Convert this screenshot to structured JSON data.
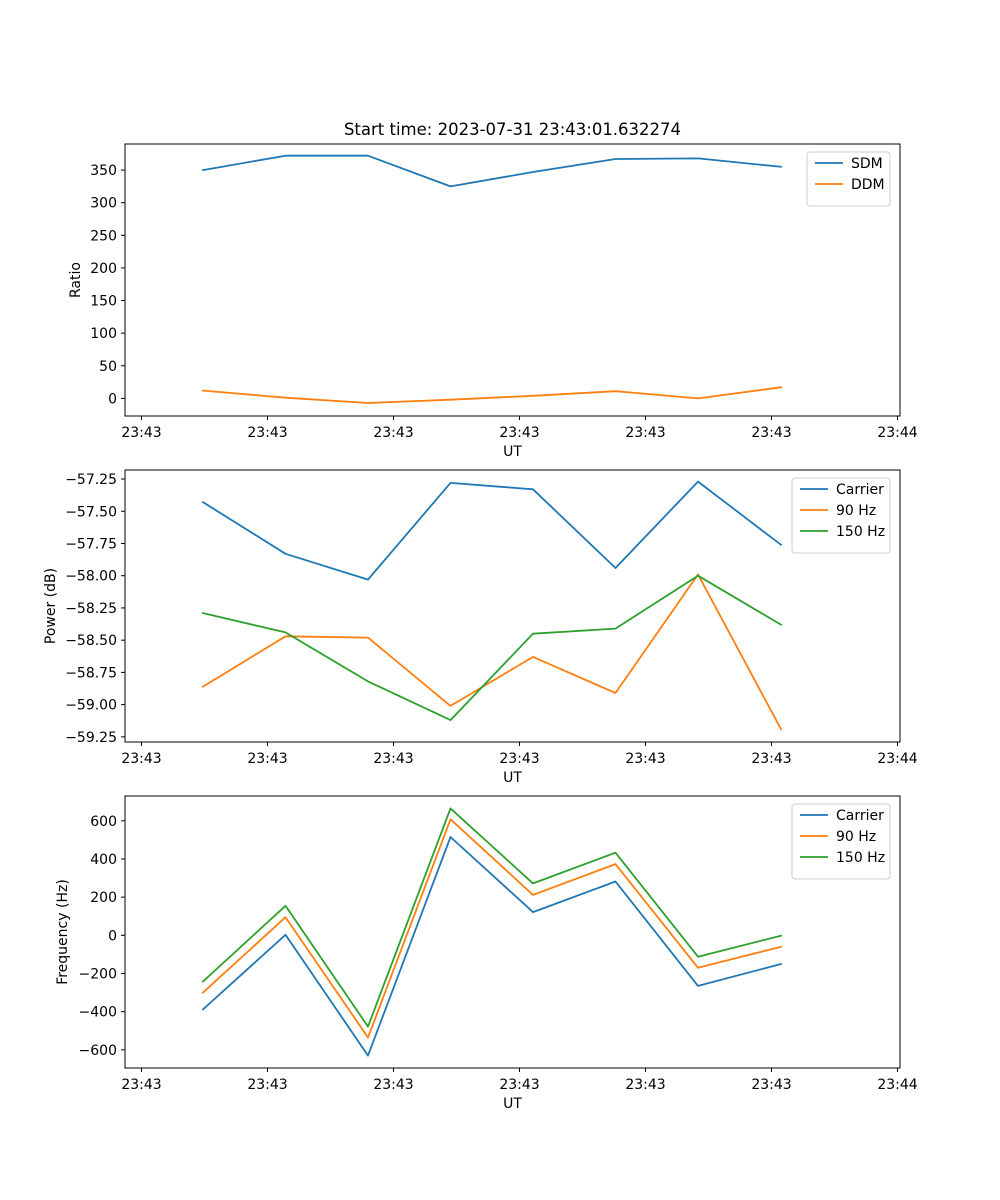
{
  "chart_data": [
    {
      "type": "line",
      "title": "Start time: 2023-07-31 23:43:01.632274",
      "xlabel": "UT",
      "ylabel": "Ratio",
      "x_tick_labels": [
        "23:43",
        "23:43",
        "23:43",
        "23:43",
        "23:43",
        "23:43",
        "23:44"
      ],
      "y_ticks": [
        0,
        50,
        100,
        150,
        200,
        250,
        300,
        350
      ],
      "ylim": [
        -27,
        390
      ],
      "grid": false,
      "legend_position": "top-right",
      "series": [
        {
          "name": "SDM",
          "color": "#1f77b4",
          "values": [
            350,
            372,
            372,
            325,
            347,
            367,
            368,
            355
          ]
        },
        {
          "name": "DDM",
          "color": "#ff7f0e",
          "values": [
            12,
            1,
            -7,
            -2,
            4,
            11,
            0,
            17
          ]
        }
      ]
    },
    {
      "type": "line",
      "title": "",
      "xlabel": "UT",
      "ylabel": "Power (dB)",
      "x_tick_labels": [
        "23:43",
        "23:43",
        "23:43",
        "23:43",
        "23:43",
        "23:43",
        "23:44"
      ],
      "y_ticks": [
        -57.25,
        -57.5,
        -57.75,
        -58.0,
        -58.25,
        -58.5,
        -58.75,
        -59.0,
        -59.25
      ],
      "y_tick_labels": [
        "−57.25",
        "−57.50",
        "−57.75",
        "−58.00",
        "−58.25",
        "−58.50",
        "−58.75",
        "−59.00",
        "−59.25"
      ],
      "ylim": [
        -59.29,
        -57.18
      ],
      "grid": false,
      "legend_position": "top-right",
      "series": [
        {
          "name": "Carrier",
          "color": "#1f77b4",
          "values": [
            -57.43,
            -57.83,
            -58.03,
            -57.28,
            -57.33,
            -57.94,
            -57.27,
            -57.76
          ]
        },
        {
          "name": "90 Hz",
          "color": "#ff7f0e",
          "values": [
            -58.86,
            -58.47,
            -58.48,
            -59.01,
            -58.63,
            -58.91,
            -57.99,
            -59.19
          ]
        },
        {
          "name": "150 Hz",
          "color": "#2ca02c",
          "values": [
            -58.29,
            -58.44,
            -58.82,
            -59.12,
            -58.45,
            -58.41,
            -58.0,
            -58.38
          ]
        }
      ]
    },
    {
      "type": "line",
      "title": "",
      "xlabel": "UT",
      "ylabel": "Frequency (Hz)",
      "x_tick_labels": [
        "23:43",
        "23:43",
        "23:43",
        "23:43",
        "23:43",
        "23:43",
        "23:44"
      ],
      "y_ticks": [
        600,
        400,
        200,
        0,
        -200,
        -400,
        -600
      ],
      "y_tick_labels": [
        "600",
        "400",
        "200",
        "0",
        "−200",
        "−400",
        "−600"
      ],
      "ylim": [
        -695,
        730
      ],
      "grid": false,
      "legend_position": "top-right",
      "series": [
        {
          "name": "Carrier",
          "color": "#1f77b4",
          "values": [
            -388,
            3,
            -630,
            515,
            122,
            282,
            -265,
            -150
          ]
        },
        {
          "name": "90 Hz",
          "color": "#ff7f0e",
          "values": [
            -300,
            95,
            -535,
            608,
            212,
            373,
            -170,
            -60
          ]
        },
        {
          "name": "150 Hz",
          "color": "#2ca02c",
          "values": [
            -242,
            155,
            -478,
            665,
            272,
            433,
            -112,
            -2
          ]
        }
      ]
    }
  ]
}
